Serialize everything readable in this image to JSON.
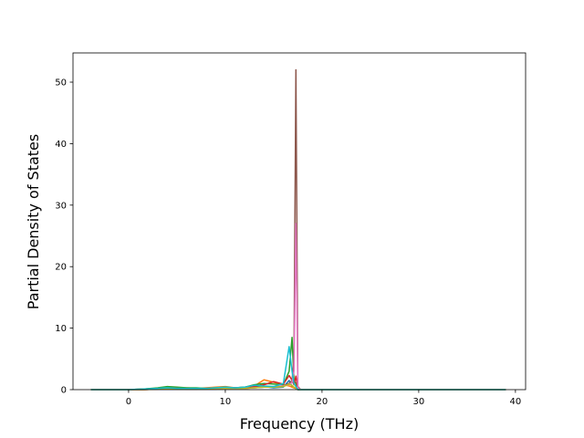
{
  "chart_data": {
    "type": "line",
    "xlabel": "Frequency (THz)",
    "ylabel": "Partial Density of States",
    "x": [
      -3.9,
      0,
      1.5,
      3,
      4,
      5,
      6,
      7,
      8,
      9,
      10,
      11,
      12,
      13,
      14,
      15,
      16,
      16.6,
      16.9,
      17.1,
      17.3,
      17.5,
      17.8,
      20,
      39
    ],
    "series": [
      {
        "color": "#1f77b4",
        "values": [
          0,
          0,
          0.1,
          0.2,
          0.3,
          0.2,
          0.2,
          0.1,
          0.2,
          0.3,
          0.3,
          0.2,
          0.3,
          0.4,
          0.5,
          0.3,
          0.4,
          1.5,
          0.5,
          0.3,
          0.2,
          0,
          0,
          0,
          0
        ]
      },
      {
        "color": "#ff7f0e",
        "values": [
          0,
          0,
          0.1,
          0.2,
          0.4,
          0.3,
          0.3,
          0.2,
          0.3,
          0.4,
          0.5,
          0.3,
          0.4,
          0.6,
          1.6,
          1.2,
          0.8,
          0.6,
          0.4,
          0.3,
          0.2,
          0,
          0,
          0,
          0
        ]
      },
      {
        "color": "#2ca02c",
        "values": [
          0,
          0,
          0.1,
          0.3,
          0.5,
          0.4,
          0.3,
          0.3,
          0.2,
          0.3,
          0.4,
          0.3,
          0.4,
          0.8,
          1.0,
          0.9,
          0.8,
          3.0,
          8.5,
          1.5,
          1.0,
          0,
          0,
          0,
          0
        ]
      },
      {
        "color": "#d62728",
        "values": [
          0,
          0,
          0,
          0.1,
          0.2,
          0.2,
          0.1,
          0.1,
          0.2,
          0.2,
          0.3,
          0.3,
          0.3,
          0.5,
          0.8,
          1.3,
          0.9,
          2.3,
          1.5,
          0.8,
          2.2,
          0,
          0,
          0,
          0
        ]
      },
      {
        "color": "#8c564b",
        "values": [
          0,
          0,
          0,
          0.1,
          0.1,
          0.1,
          0.1,
          0.1,
          0.1,
          0.1,
          0.2,
          0.2,
          0.2,
          0.3,
          0.4,
          0.5,
          0.6,
          1.0,
          1.5,
          5,
          52,
          0.5,
          0,
          0,
          0
        ]
      },
      {
        "color": "#e377c2",
        "values": [
          0,
          0,
          0,
          0.1,
          0.1,
          0.1,
          0.1,
          0.1,
          0.1,
          0.1,
          0.2,
          0.2,
          0.2,
          0.3,
          0.4,
          0.5,
          0.6,
          0.8,
          1.2,
          3,
          27,
          0.3,
          0,
          0,
          0
        ]
      },
      {
        "color": "#bcbd22",
        "values": [
          0,
          0,
          0,
          0.1,
          0.2,
          0.1,
          0.1,
          0.1,
          0.1,
          0.2,
          0.2,
          0.2,
          0.2,
          0.3,
          0.4,
          0.4,
          0.5,
          0.9,
          0.7,
          0.4,
          0.3,
          0,
          0,
          0,
          0
        ]
      },
      {
        "color": "#17becf",
        "values": [
          0,
          0,
          0.1,
          0.2,
          0.3,
          0.2,
          0.2,
          0.2,
          0.2,
          0.3,
          0.4,
          0.3,
          0.4,
          0.7,
          0.6,
          0.5,
          1.0,
          7,
          3,
          1.0,
          0.5,
          0,
          0,
          0,
          0
        ]
      }
    ],
    "xlim": [
      -5.75,
      41.05
    ],
    "ylim": [
      0,
      54.75
    ],
    "xticks": [
      0,
      10,
      20,
      30,
      40
    ],
    "yticks": [
      0,
      10,
      20,
      30,
      40,
      50
    ]
  }
}
